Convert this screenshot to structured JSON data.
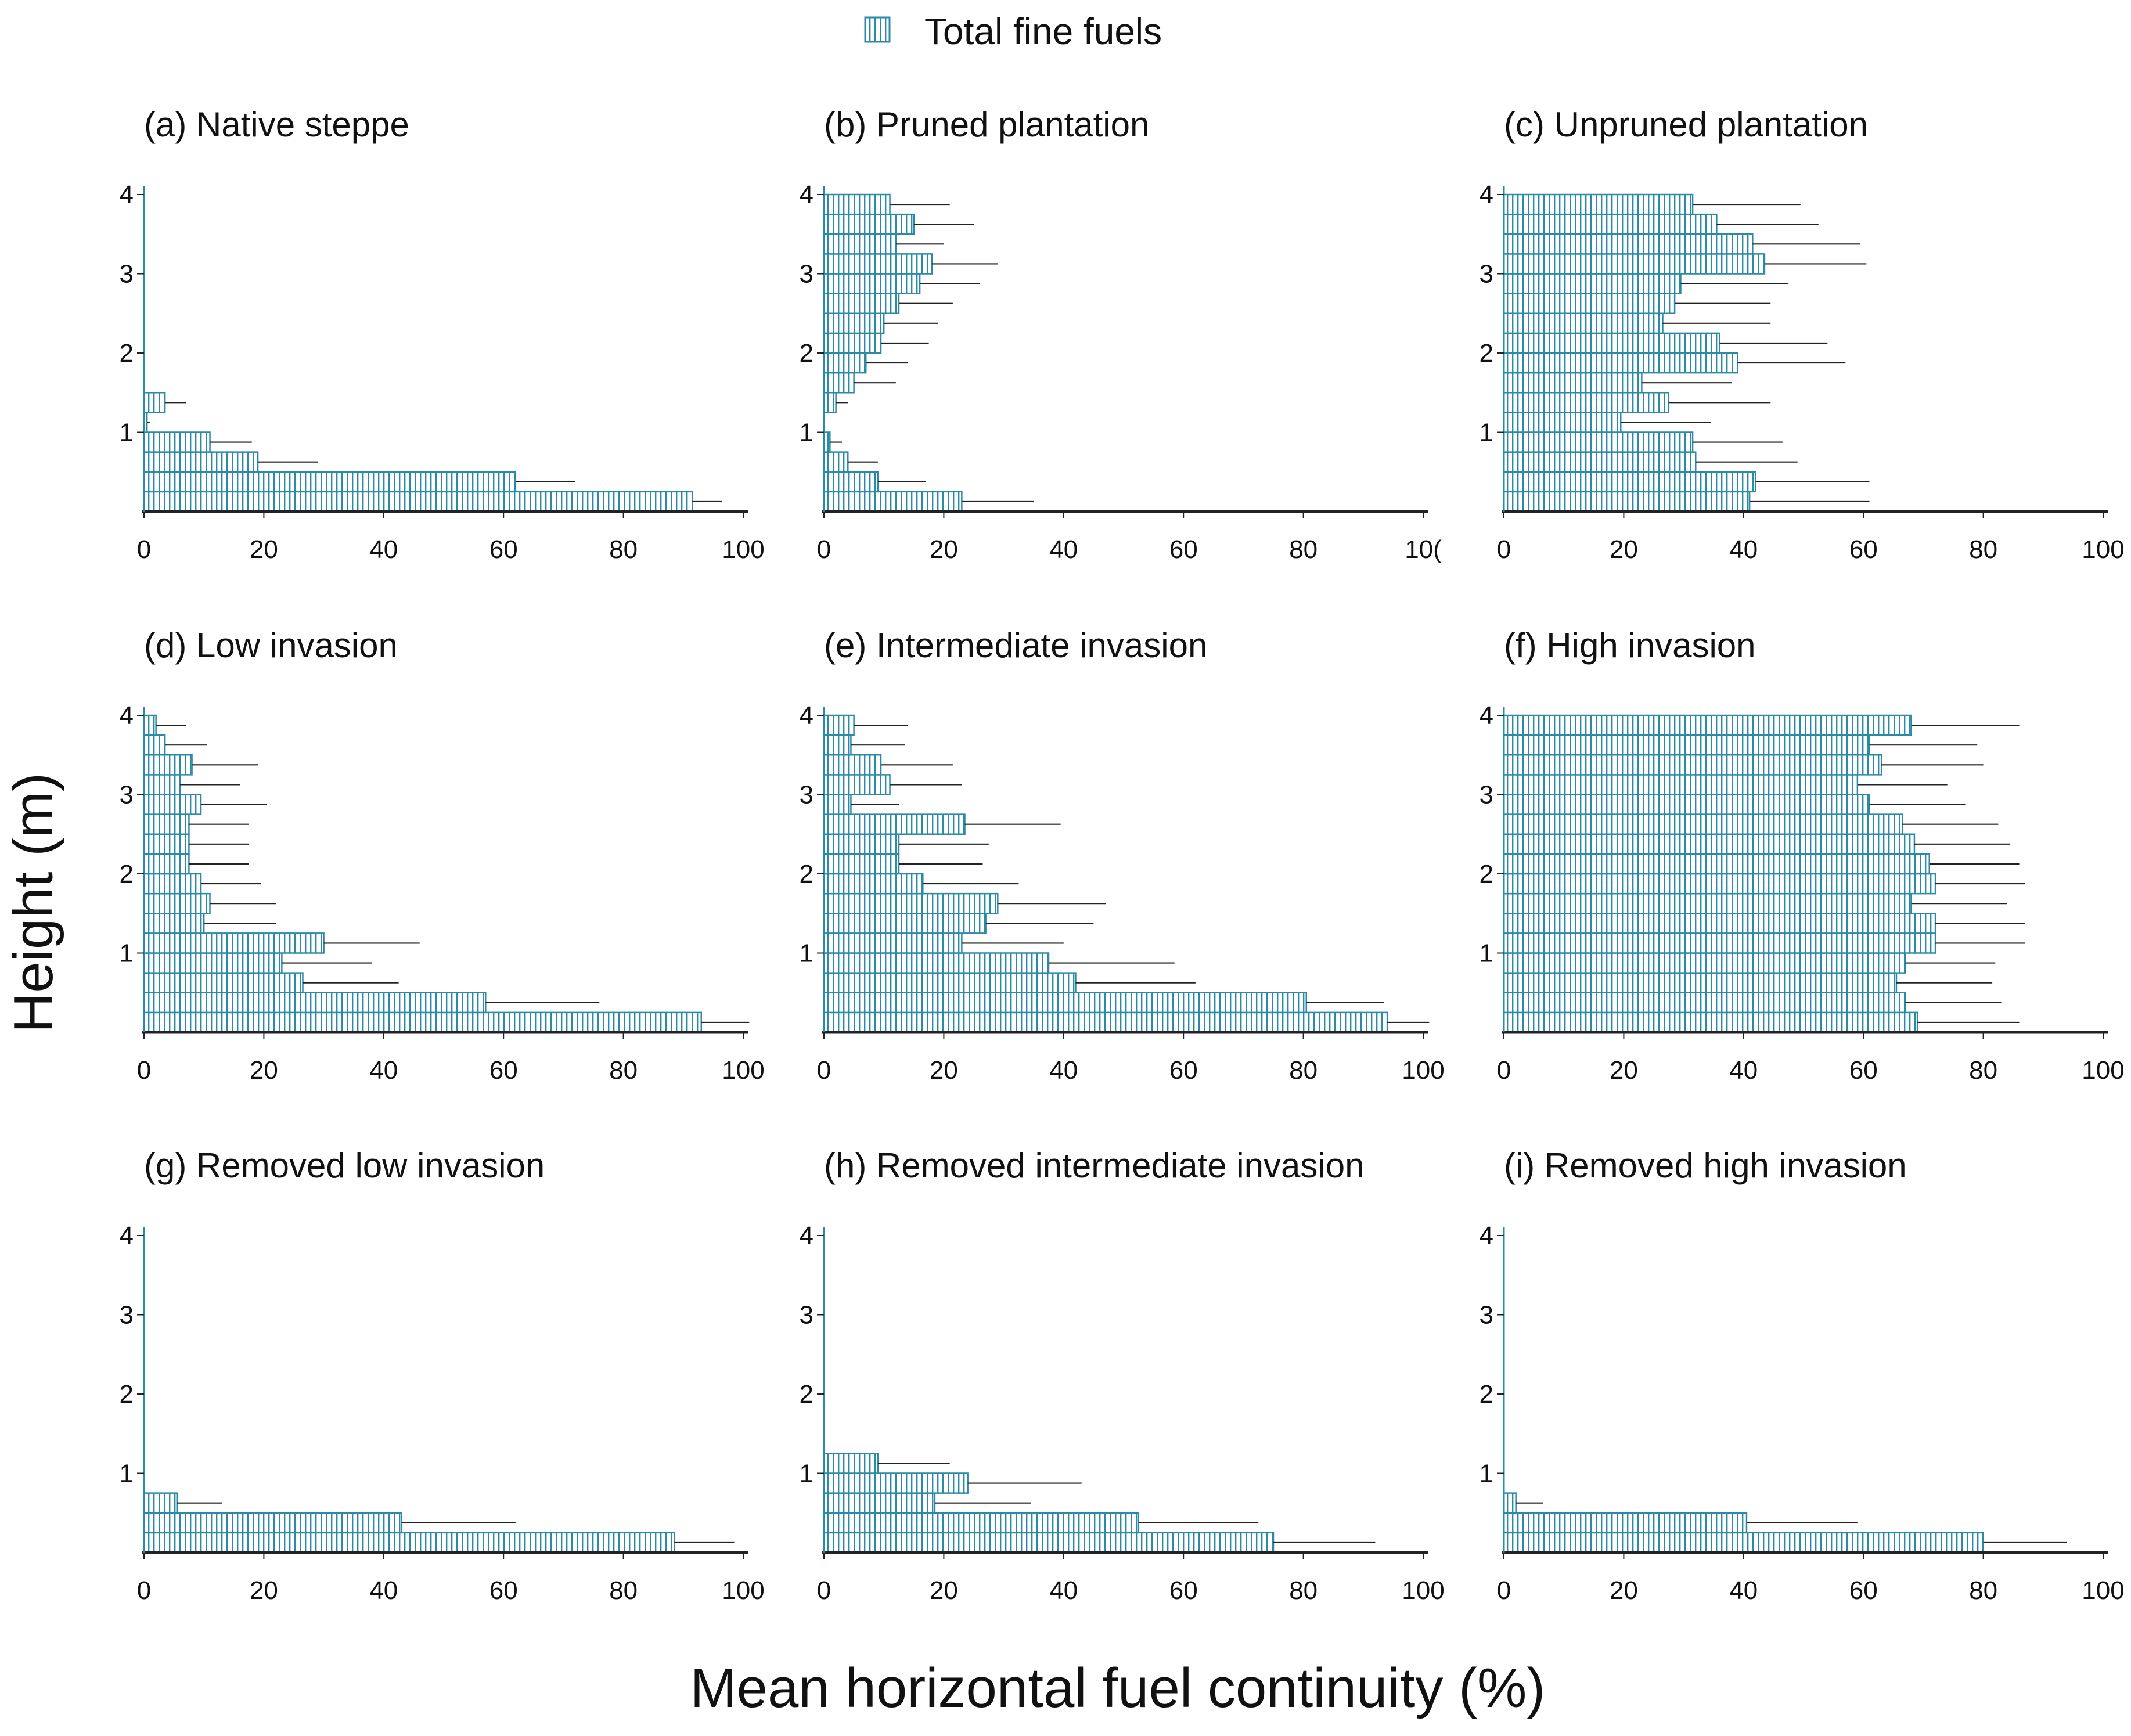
{
  "figure": {
    "legend_label": "Total fine fuels",
    "ylabel": "Height (m)",
    "xlabel": "Mean horizontal fuel continuity (%)"
  },
  "colors": {
    "bar_stroke": "#2b8aa6",
    "hatch": "#2b8aa6",
    "error": "#222222",
    "axis": "#222222"
  },
  "chart_data": [
    {
      "id": "a",
      "type": "bar",
      "orientation": "horizontal",
      "title": "(a) Native steppe",
      "ylim": [
        0,
        4
      ],
      "xlim": [
        0,
        100
      ],
      "yticks": [
        "1",
        "2",
        "3",
        "4"
      ],
      "xticks": [
        "0",
        "20",
        "40",
        "60",
        "80",
        "100"
      ],
      "means": [
        91.5,
        62,
        19,
        11,
        0.5,
        3.5,
        0,
        0,
        0,
        0,
        0,
        0,
        0,
        0,
        0,
        0
      ],
      "errors": [
        5,
        10,
        10,
        7,
        0.5,
        3.5,
        0,
        0,
        0,
        0,
        0,
        0,
        0,
        0,
        0,
        0
      ]
    },
    {
      "id": "b",
      "type": "bar",
      "orientation": "horizontal",
      "title": "(b) Pruned plantation",
      "ylim": [
        0,
        4
      ],
      "xlim": [
        0,
        100
      ],
      "yticks": [
        "1",
        "2",
        "3",
        "4"
      ],
      "xticks": [
        "0",
        "20",
        "40",
        "60",
        "80",
        "10("
      ],
      "means": [
        23,
        9,
        4,
        1,
        0,
        2,
        5,
        7,
        9.5,
        10,
        12.5,
        16,
        18,
        12,
        15,
        11
      ],
      "errors": [
        12,
        8,
        5,
        2,
        0,
        2,
        7,
        7,
        8,
        9,
        9,
        10,
        11,
        8,
        10,
        10
      ]
    },
    {
      "id": "c",
      "type": "bar",
      "orientation": "horizontal",
      "title": "(c) Unpruned plantation",
      "ylim": [
        0,
        4
      ],
      "xlim": [
        0,
        100
      ],
      "yticks": [
        "1",
        "2",
        "3",
        "4"
      ],
      "xticks": [
        "0",
        "20",
        "40",
        "60",
        "80",
        "100"
      ],
      "means": [
        41,
        42,
        32,
        31.5,
        19.5,
        27.5,
        23,
        39,
        36,
        26.5,
        28.5,
        29.5,
        43.5,
        41.5,
        35.5,
        31.5
      ],
      "errors": [
        20,
        19,
        17,
        15,
        15,
        17,
        15,
        18,
        18,
        18,
        16,
        18,
        17,
        18,
        17,
        18
      ]
    },
    {
      "id": "d",
      "type": "bar",
      "orientation": "horizontal",
      "title": "(d) Low invasion",
      "ylim": [
        0,
        4
      ],
      "xlim": [
        0,
        100
      ],
      "yticks": [
        "1",
        "2",
        "3",
        "4"
      ],
      "xticks": [
        "0",
        "20",
        "40",
        "60",
        "80",
        "100"
      ],
      "means": [
        93,
        57,
        26.5,
        23,
        30,
        10,
        11,
        9.5,
        7.5,
        7.5,
        7.5,
        9.5,
        6,
        8,
        3.5,
        2
      ],
      "errors": [
        8,
        19,
        16,
        15,
        16,
        12,
        11,
        10,
        10,
        10,
        10,
        11,
        10,
        11,
        7,
        5
      ]
    },
    {
      "id": "e",
      "type": "bar",
      "orientation": "horizontal",
      "title": "(e) Intermediate invasion",
      "ylim": [
        0,
        4
      ],
      "xlim": [
        0,
        100
      ],
      "yticks": [
        "1",
        "2",
        "3",
        "4"
      ],
      "xticks": [
        "0",
        "20",
        "40",
        "60",
        "80",
        "100"
      ],
      "means": [
        94,
        80.5,
        42,
        37.5,
        23,
        27,
        29,
        16.5,
        12.5,
        12.5,
        23.5,
        4.5,
        11,
        9.5,
        4.5,
        5
      ],
      "errors": [
        7,
        13,
        20,
        21,
        17,
        18,
        18,
        16,
        14,
        15,
        16,
        8,
        12,
        12,
        9,
        9
      ]
    },
    {
      "id": "f",
      "type": "bar",
      "orientation": "horizontal",
      "title": "(f) High invasion",
      "ylim": [
        0,
        4
      ],
      "xlim": [
        0,
        100
      ],
      "yticks": [
        "1",
        "2",
        "3",
        "4"
      ],
      "xticks": [
        "0",
        "20",
        "40",
        "60",
        "80",
        "100"
      ],
      "means": [
        69,
        67,
        65.5,
        67,
        72,
        72,
        68,
        72,
        71,
        68.5,
        66.5,
        61,
        59,
        63,
        61,
        68
      ],
      "errors": [
        17,
        16,
        16,
        15,
        15,
        15,
        16,
        15,
        15,
        16,
        16,
        16,
        15,
        17,
        18,
        18
      ]
    },
    {
      "id": "g",
      "type": "bar",
      "orientation": "horizontal",
      "title": "(g) Removed low invasion",
      "ylim": [
        0,
        4
      ],
      "xlim": [
        0,
        100
      ],
      "yticks": [
        "1",
        "2",
        "3",
        "4"
      ],
      "xticks": [
        "0",
        "20",
        "40",
        "60",
        "80",
        "100"
      ],
      "means": [
        88.5,
        43,
        5.5,
        0,
        0,
        0,
        0,
        0,
        0,
        0,
        0,
        0,
        0,
        0,
        0,
        0
      ],
      "errors": [
        10,
        19,
        7.5,
        0,
        0,
        0,
        0,
        0,
        0,
        0,
        0,
        0,
        0,
        0,
        0,
        0
      ]
    },
    {
      "id": "h",
      "type": "bar",
      "orientation": "horizontal",
      "title": "(h) Removed intermediate invasion",
      "ylim": [
        0,
        4
      ],
      "xlim": [
        0,
        100
      ],
      "yticks": [
        "1",
        "2",
        "3",
        "4"
      ],
      "xticks": [
        "0",
        "20",
        "40",
        "60",
        "80",
        "100"
      ],
      "means": [
        75,
        52.5,
        18.5,
        24,
        9,
        0,
        0,
        0,
        0,
        0,
        0,
        0,
        0,
        0,
        0,
        0
      ],
      "errors": [
        17,
        20,
        16,
        19,
        12,
        0,
        0,
        0,
        0,
        0,
        0,
        0,
        0,
        0,
        0,
        0
      ]
    },
    {
      "id": "i",
      "type": "bar",
      "orientation": "horizontal",
      "title": "(i) Removed high invasion",
      "ylim": [
        0,
        4
      ],
      "xlim": [
        0,
        100
      ],
      "yticks": [
        "1",
        "2",
        "3",
        "4"
      ],
      "xticks": [
        "0",
        "20",
        "40",
        "60",
        "80",
        "100"
      ],
      "means": [
        80,
        40.5,
        2,
        0,
        0,
        0,
        0,
        0,
        0,
        0,
        0,
        0,
        0,
        0,
        0,
        0
      ],
      "errors": [
        14,
        18.5,
        4.5,
        0,
        0,
        0,
        0,
        0,
        0,
        0,
        0,
        0,
        0,
        0,
        0,
        0
      ]
    }
  ]
}
